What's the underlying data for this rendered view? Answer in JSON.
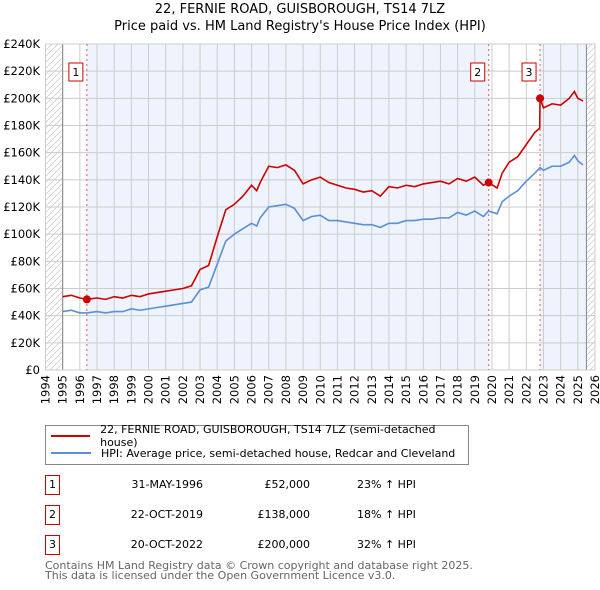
{
  "chart_data": {
    "type": "line",
    "title": "22, FERNIE ROAD, GUISBOROUGH, TS14 7LZ",
    "subtitle": "Price paid vs. HM Land Registry's House Price Index (HPI)",
    "xlim": [
      1994,
      2026
    ],
    "ylim": [
      0,
      240000
    ],
    "x_ticks": [
      "1994",
      "1995",
      "1996",
      "1997",
      "1998",
      "1999",
      "2000",
      "2001",
      "2002",
      "2003",
      "2004",
      "2005",
      "2006",
      "2007",
      "2008",
      "2009",
      "2010",
      "2011",
      "2012",
      "2013",
      "2014",
      "2015",
      "2016",
      "2017",
      "2018",
      "2019",
      "2020",
      "2021",
      "2022",
      "2023",
      "2024",
      "2025",
      "2026"
    ],
    "y_ticks": [
      {
        "v": 0,
        "l": "£0"
      },
      {
        "v": 20000,
        "l": "£20K"
      },
      {
        "v": 40000,
        "l": "£40K"
      },
      {
        "v": 60000,
        "l": "£60K"
      },
      {
        "v": 80000,
        "l": "£80K"
      },
      {
        "v": 100000,
        "l": "£100K"
      },
      {
        "v": 120000,
        "l": "£120K"
      },
      {
        "v": 140000,
        "l": "£140K"
      },
      {
        "v": 160000,
        "l": "£160K"
      },
      {
        "v": 180000,
        "l": "£180K"
      },
      {
        "v": 200000,
        "l": "£200K"
      },
      {
        "v": 220000,
        "l": "£220K"
      },
      {
        "v": 240000,
        "l": "£240K"
      }
    ],
    "grid": true,
    "data_start": 1995,
    "data_end": 2025.5,
    "series": [
      {
        "name": "22, FERNIE ROAD, GUISBOROUGH, TS14 7LZ (semi-detached house)",
        "color": "#cc0000",
        "x": [
          1995,
          1995.5,
          1996,
          1996.4,
          1997,
          1997.5,
          1998,
          1998.5,
          1999,
          1999.5,
          2000,
          2000.5,
          2001,
          2001.5,
          2002,
          2002.5,
          2003,
          2003.5,
          2004,
          2004.5,
          2005,
          2005.5,
          2006,
          2006.3,
          2006.5,
          2007,
          2007.5,
          2008,
          2008.5,
          2009,
          2009.5,
          2010,
          2010.5,
          2011,
          2011.5,
          2012,
          2012.5,
          2013,
          2013.5,
          2014,
          2014.5,
          2015,
          2015.5,
          2016,
          2016.5,
          2017,
          2017.5,
          2018,
          2018.5,
          2019,
          2019.5,
          2019.8,
          2020.3,
          2020.6,
          2021,
          2021.5,
          2022,
          2022.5,
          2022.78,
          2022.8,
          2023,
          2023.5,
          2024,
          2024.5,
          2024.8,
          2025,
          2025.3
        ],
        "y": [
          54000,
          55000,
          53000,
          52000,
          53000,
          52000,
          54000,
          53000,
          55000,
          54000,
          56000,
          57000,
          58000,
          59000,
          60000,
          62000,
          74000,
          77000,
          98000,
          118000,
          122000,
          128000,
          136000,
          132000,
          138000,
          150000,
          149000,
          151000,
          147000,
          137000,
          140000,
          142000,
          138000,
          136000,
          134000,
          133000,
          131000,
          132000,
          128000,
          135000,
          134000,
          136000,
          135000,
          137000,
          138000,
          139000,
          137000,
          141000,
          139000,
          142000,
          136000,
          138000,
          134000,
          145000,
          153000,
          157000,
          166000,
          175000,
          178000,
          200000,
          193000,
          196000,
          195000,
          200000,
          205000,
          200000,
          198000
        ]
      },
      {
        "name": "HPI: Average price, semi-detached house, Redcar and Cleveland",
        "color": "#5b8fd4",
        "x": [
          1995,
          1995.5,
          1996,
          1996.4,
          1997,
          1997.5,
          1998,
          1998.5,
          1999,
          1999.5,
          2000,
          2000.5,
          2001,
          2001.5,
          2002,
          2002.5,
          2003,
          2003.5,
          2004,
          2004.5,
          2005,
          2005.5,
          2006,
          2006.3,
          2006.5,
          2007,
          2007.5,
          2008,
          2008.5,
          2009,
          2009.5,
          2010,
          2010.5,
          2011,
          2011.5,
          2012,
          2012.5,
          2013,
          2013.5,
          2014,
          2014.5,
          2015,
          2015.5,
          2016,
          2016.5,
          2017,
          2017.5,
          2018,
          2018.5,
          2019,
          2019.5,
          2019.8,
          2020.3,
          2020.6,
          2021,
          2021.5,
          2022,
          2022.5,
          2022.8,
          2023,
          2023.5,
          2024,
          2024.5,
          2024.8,
          2025,
          2025.3
        ],
        "y": [
          43000,
          44000,
          42000,
          42000,
          43000,
          42000,
          43000,
          43000,
          45000,
          44000,
          45000,
          46000,
          47000,
          48000,
          49000,
          50000,
          59000,
          61000,
          78000,
          95000,
          100000,
          104000,
          108000,
          106000,
          112000,
          120000,
          121000,
          122000,
          119000,
          110000,
          113000,
          114000,
          110000,
          110000,
          109000,
          108000,
          107000,
          107000,
          105000,
          108000,
          108000,
          110000,
          110000,
          111000,
          111000,
          112000,
          112000,
          116000,
          114000,
          117000,
          113000,
          117000,
          115000,
          124000,
          128000,
          132000,
          139000,
          145000,
          149000,
          147000,
          150000,
          150000,
          153000,
          158000,
          154000,
          151000
        ]
      }
    ],
    "sales": [
      {
        "n": "1",
        "x": 1996.41,
        "y": 52000
      },
      {
        "n": "2",
        "x": 2019.81,
        "y": 138000
      },
      {
        "n": "3",
        "x": 2022.8,
        "y": 200000
      }
    ],
    "legend": [
      "22, FERNIE ROAD, GUISBOROUGH, TS14 7LZ (semi-detached house)",
      "HPI: Average price, semi-detached house, Redcar and Cleveland"
    ]
  },
  "table": [
    {
      "n": "1",
      "date": "31-MAY-1996",
      "price": "£52,000",
      "hpi": "23% ↑ HPI"
    },
    {
      "n": "2",
      "date": "22-OCT-2019",
      "price": "£138,000",
      "hpi": "18% ↑ HPI"
    },
    {
      "n": "3",
      "date": "20-OCT-2022",
      "price": "£200,000",
      "hpi": "32% ↑ HPI"
    }
  ],
  "footer": [
    "Contains HM Land Registry data © Crown copyright and database right 2025.",
    "This data is licensed under the Open Government Licence v3.0."
  ]
}
